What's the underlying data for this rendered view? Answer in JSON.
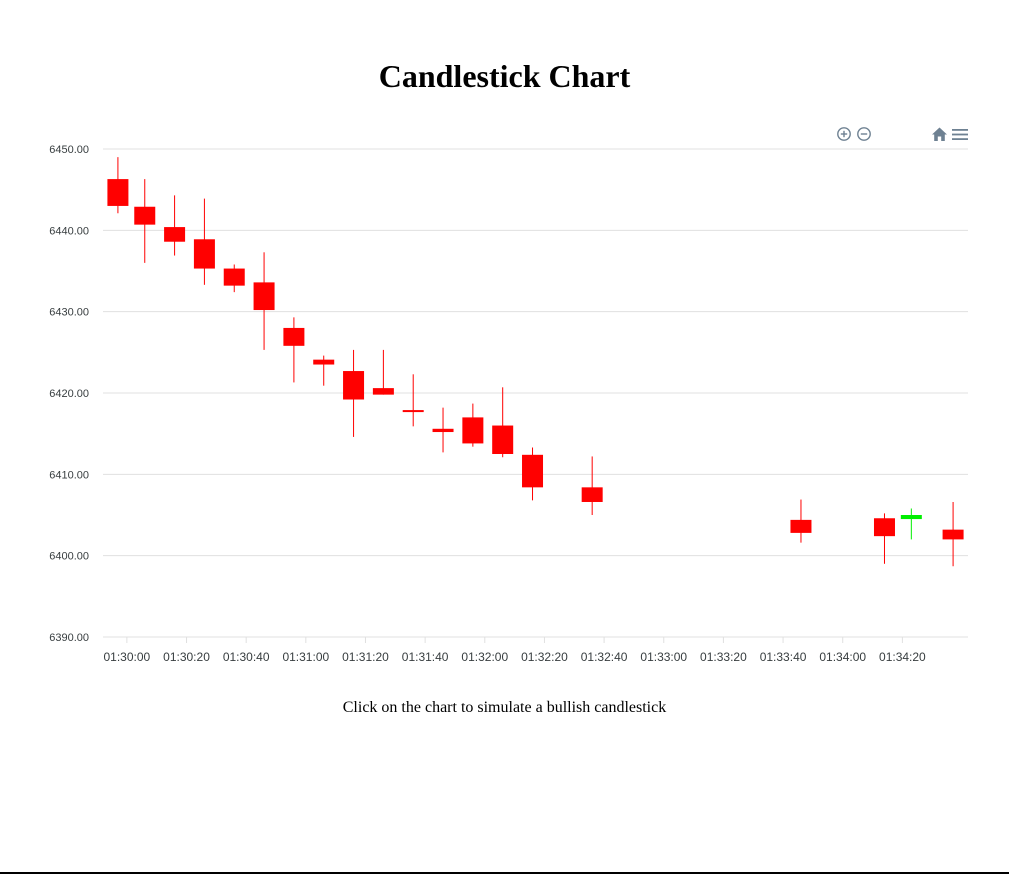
{
  "page": {
    "title": "Candlestick Chart",
    "instruction": "Click on the chart to simulate a bullish candlestick"
  },
  "toolbar": {
    "zoom_in_icon": "zoom-in-icon",
    "zoom_out_icon": "zoom-out-icon",
    "reset_icon": "home-icon",
    "menu_icon": "hamburger-menu-icon"
  },
  "colors": {
    "bearish": "#ff0000",
    "bullish": "#00ee00",
    "grid": "#e0e0e0",
    "axis_text": "#373d3f",
    "toolbar_icon": "#6e8192"
  },
  "chart_data": {
    "type": "candlestick",
    "title": "",
    "xlabel": "",
    "ylabel": "",
    "ylim": [
      6390,
      6450
    ],
    "y_ticks": [
      "6390.00",
      "6400.00",
      "6410.00",
      "6420.00",
      "6430.00",
      "6440.00",
      "6450.00"
    ],
    "x_ticks": [
      "01:30:00",
      "01:30:20",
      "01:30:40",
      "01:31:00",
      "01:31:20",
      "01:31:40",
      "01:32:00",
      "01:32:20",
      "01:32:40",
      "01:33:00",
      "01:33:20",
      "01:33:40",
      "01:34:00",
      "01:34:20"
    ],
    "x_tick_seconds": [
      0,
      20,
      40,
      60,
      80,
      100,
      120,
      140,
      160,
      180,
      200,
      220,
      240,
      260
    ],
    "xlim_seconds": [
      -8,
      282
    ],
    "grid": true,
    "legend": "none",
    "candles": [
      {
        "time": "01:29:57",
        "t": -3,
        "open": 6446.3,
        "high": 6449.0,
        "low": 6442.1,
        "close": 6443.0
      },
      {
        "time": "01:30:06",
        "t": 6,
        "open": 6442.9,
        "high": 6446.3,
        "low": 6436.0,
        "close": 6440.7
      },
      {
        "time": "01:30:16",
        "t": 16,
        "open": 6440.4,
        "high": 6444.3,
        "low": 6436.9,
        "close": 6438.6
      },
      {
        "time": "01:30:26",
        "t": 26,
        "open": 6438.9,
        "high": 6443.9,
        "low": 6433.3,
        "close": 6435.3
      },
      {
        "time": "01:30:36",
        "t": 36,
        "open": 6435.3,
        "high": 6435.8,
        "low": 6432.4,
        "close": 6433.2
      },
      {
        "time": "01:30:46",
        "t": 46,
        "open": 6433.6,
        "high": 6437.3,
        "low": 6425.3,
        "close": 6430.2
      },
      {
        "time": "01:30:56",
        "t": 56,
        "open": 6428.0,
        "high": 6429.3,
        "low": 6421.3,
        "close": 6425.8
      },
      {
        "time": "01:31:06",
        "t": 66,
        "open": 6424.1,
        "high": 6424.6,
        "low": 6420.9,
        "close": 6423.5
      },
      {
        "time": "01:31:16",
        "t": 76,
        "open": 6422.7,
        "high": 6425.3,
        "low": 6414.6,
        "close": 6419.2
      },
      {
        "time": "01:31:26",
        "t": 86,
        "open": 6420.6,
        "high": 6425.3,
        "low": 6419.8,
        "close": 6419.8
      },
      {
        "time": "01:31:36",
        "t": 96,
        "open": 6417.9,
        "high": 6422.3,
        "low": 6415.9,
        "close": 6417.7
      },
      {
        "time": "01:31:46",
        "t": 106,
        "open": 6415.6,
        "high": 6418.2,
        "low": 6412.7,
        "close": 6415.2
      },
      {
        "time": "01:31:56",
        "t": 116,
        "open": 6417.0,
        "high": 6418.7,
        "low": 6413.4,
        "close": 6413.8
      },
      {
        "time": "01:32:06",
        "t": 126,
        "open": 6416.0,
        "high": 6420.7,
        "low": 6412.1,
        "close": 6412.5
      },
      {
        "time": "01:32:16",
        "t": 136,
        "open": 6412.4,
        "high": 6413.3,
        "low": 6406.8,
        "close": 6408.4
      },
      {
        "time": "01:32:36",
        "t": 156,
        "open": 6408.4,
        "high": 6412.2,
        "low": 6405.0,
        "close": 6406.6
      },
      {
        "time": "01:33:46",
        "t": 226,
        "open": 6404.4,
        "high": 6406.9,
        "low": 6401.6,
        "close": 6402.8
      },
      {
        "time": "01:34:14",
        "t": 254,
        "open": 6404.6,
        "high": 6405.2,
        "low": 6399.0,
        "close": 6402.4
      },
      {
        "time": "01:34:23",
        "t": 263,
        "open": 6404.5,
        "high": 6405.8,
        "low": 6402.0,
        "close": 6405.0
      },
      {
        "time": "01:34:37",
        "t": 277,
        "open": 6403.2,
        "high": 6406.6,
        "low": 6398.7,
        "close": 6402.0
      }
    ]
  }
}
